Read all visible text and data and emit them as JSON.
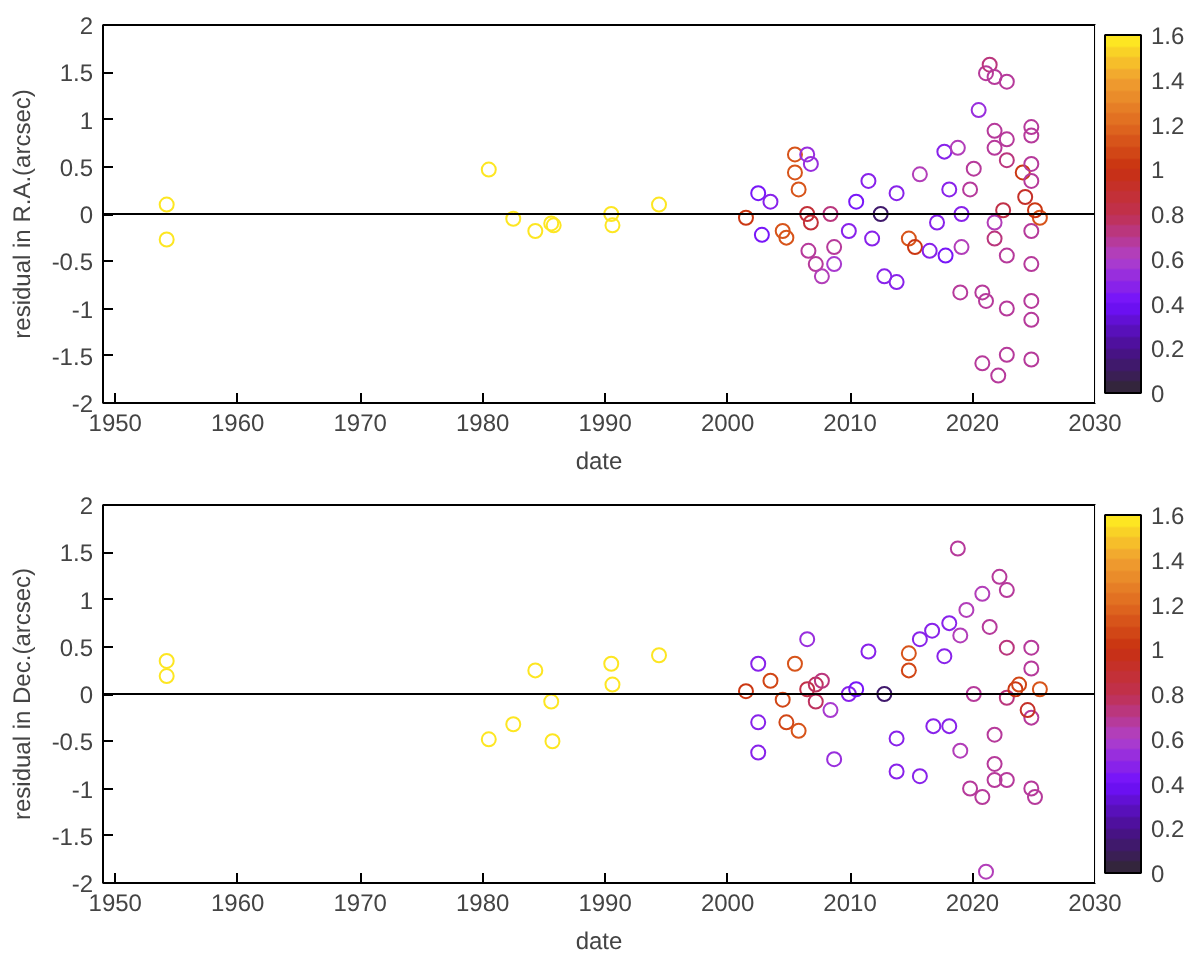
{
  "chart_data": [
    {
      "type": "scatter",
      "xlabel": "date",
      "ylabel": "residual in R.A.(arcsec)",
      "marker": "circle",
      "grid": false,
      "xlim": [
        1949,
        2030
      ],
      "xticks": [
        1950,
        1960,
        1970,
        1980,
        1990,
        2000,
        2010,
        2020,
        2030
      ],
      "ylim": [
        -2,
        2
      ],
      "yticks": [
        -2,
        -1.5,
        -1,
        -0.5,
        0,
        0.5,
        1,
        1.5,
        2
      ],
      "clim": [
        0,
        1.6
      ],
      "cticks": [
        0,
        0.2,
        0.4,
        0.6,
        0.8,
        1,
        1.2,
        1.4,
        1.6
      ],
      "ref_lines": [
        {
          "axis": "y",
          "value": 0,
          "color": "#000000"
        }
      ],
      "x": [
        1954.2,
        1954.2,
        1980.5,
        1982.5,
        1984.3,
        1985.6,
        1985.8,
        1990.5,
        1990.6,
        1994.4,
        2001.5,
        2002.5,
        2002.8,
        2003.5,
        2004.5,
        2004.8,
        2005.5,
        2005.5,
        2005.8,
        2006.5,
        2006.8,
        2006.5,
        2006.8,
        2006.6,
        2007.2,
        2007.7,
        2008.7,
        2008.7,
        2008.4,
        2009.9,
        2010.5,
        2011.5,
        2011.8,
        2012.8,
        2013.8,
        2012.5,
        2013.8,
        2014.8,
        2015.3,
        2015.7,
        2016.5,
        2017.1,
        2017.7,
        2017.8,
        2018.1,
        2018.8,
        2019.1,
        2019.1,
        2019.0,
        2019.8,
        2020.1,
        2020.5,
        2020.8,
        2020.8,
        2021.1,
        2021.1,
        2021.4,
        2021.8,
        2021.8,
        2021.8,
        2021.8,
        2021.8,
        2022.1,
        2022.8,
        2022.8,
        2022.8,
        2022.8,
        2022.8,
        2022.8,
        2022.5,
        2024.1,
        2024.3,
        2024.8,
        2024.8,
        2024.8,
        2024.8,
        2024.8,
        2024.8,
        2024.8,
        2024.8,
        2024.8,
        2025.5,
        2025.1
      ],
      "values": [
        0.1,
        -0.27,
        0.47,
        -0.05,
        -0.18,
        -0.1,
        -0.12,
        0.0,
        -0.12,
        0.1,
        -0.04,
        0.22,
        -0.22,
        0.13,
        -0.18,
        -0.25,
        0.63,
        0.44,
        0.26,
        0.63,
        0.53,
        0,
        -0.09,
        -0.39,
        -0.53,
        -0.66,
        -0.35,
        -0.53,
        0,
        -0.18,
        0.13,
        0.35,
        -0.26,
        -0.66,
        -0.72,
        0,
        0.22,
        -0.26,
        -0.35,
        0.42,
        -0.39,
        -0.09,
        0.66,
        -0.44,
        0.26,
        0.7,
        0,
        -0.35,
        -0.83,
        0.26,
        0.48,
        1.1,
        -0.83,
        -1.58,
        -0.92,
        1.49,
        1.58,
        1.45,
        0.88,
        0.7,
        -0.09,
        -0.26,
        -1.71,
        1.4,
        0.79,
        0.57,
        -0.44,
        -1.0,
        -1.49,
        0.04,
        0.44,
        0.18,
        0.92,
        0.83,
        0.53,
        0.35,
        -0.18,
        -0.53,
        -0.92,
        -1.12,
        -1.54,
        -0.04,
        0.04
      ],
      "cvalues": [
        1.6,
        1.6,
        1.6,
        1.6,
        1.6,
        1.6,
        1.6,
        1.6,
        1.6,
        1.6,
        1.0,
        0.4,
        0.4,
        0.45,
        1.1,
        1.1,
        1.1,
        1.1,
        1.1,
        0.5,
        0.5,
        0.85,
        0.85,
        0.65,
        0.65,
        0.6,
        0.65,
        0.55,
        0.7,
        0.45,
        0.4,
        0.45,
        0.45,
        0.45,
        0.45,
        0.1,
        0.45,
        1.1,
        1.0,
        0.6,
        0.45,
        0.45,
        0.45,
        0.4,
        0.45,
        0.6,
        0.45,
        0.6,
        0.65,
        0.65,
        0.65,
        0.5,
        0.65,
        0.65,
        0.65,
        0.65,
        0.7,
        0.65,
        0.65,
        0.65,
        0.6,
        0.7,
        0.65,
        0.65,
        0.65,
        0.7,
        0.65,
        0.65,
        0.65,
        0.8,
        1.0,
        0.9,
        0.65,
        0.65,
        0.65,
        0.65,
        0.65,
        0.65,
        0.65,
        0.65,
        0.65,
        1.1,
        1.0
      ]
    },
    {
      "type": "scatter",
      "xlabel": "date",
      "ylabel": "residual in Dec.(arcsec)",
      "marker": "circle",
      "grid": false,
      "xlim": [
        1949,
        2030
      ],
      "xticks": [
        1950,
        1960,
        1970,
        1980,
        1990,
        2000,
        2010,
        2020,
        2030
      ],
      "ylim": [
        -2,
        2
      ],
      "yticks": [
        -2,
        -1.5,
        -1,
        -0.5,
        0,
        0.5,
        1,
        1.5,
        2
      ],
      "clim": [
        0,
        1.6
      ],
      "cticks": [
        0,
        0.2,
        0.4,
        0.6,
        0.8,
        1,
        1.2,
        1.4,
        1.6
      ],
      "ref_lines": [
        {
          "axis": "y",
          "value": 0,
          "color": "#000000"
        }
      ],
      "x": [
        1954.2,
        1954.2,
        1980.5,
        1982.5,
        1984.3,
        1985.6,
        1985.7,
        1990.5,
        1990.6,
        1994.4,
        2001.5,
        2002.5,
        2002.5,
        2002.5,
        2003.5,
        2004.5,
        2004.8,
        2005.5,
        2005.8,
        2006.5,
        2006.5,
        2007.2,
        2007.2,
        2007.7,
        2008.7,
        2008.4,
        2009.9,
        2011.5,
        2010.5,
        2012.8,
        2013.8,
        2013.8,
        2014.8,
        2014.8,
        2015.7,
        2015.7,
        2016.7,
        2016.8,
        2017.7,
        2018.1,
        2018.1,
        2018.8,
        2019.0,
        2019.0,
        2019.5,
        2019.8,
        2020.1,
        2020.8,
        2020.8,
        2021.1,
        2021.4,
        2021.8,
        2021.8,
        2021.8,
        2022.2,
        2022.8,
        2022.8,
        2022.8,
        2022.8,
        2023.5,
        2023.8,
        2024.8,
        2024.8,
        2024.8,
        2024.8,
        2025.1,
        2025.5,
        2024.5
      ],
      "values": [
        0.35,
        0.19,
        -0.48,
        -0.32,
        0.25,
        -0.08,
        -0.5,
        0.32,
        0.1,
        0.41,
        0.03,
        0.32,
        -0.3,
        -0.62,
        0.14,
        -0.06,
        -0.3,
        0.32,
        -0.39,
        0.58,
        0.05,
        0.1,
        -0.08,
        0.14,
        -0.69,
        -0.17,
        0.0,
        0.45,
        0.05,
        0,
        -0.47,
        -0.82,
        0.43,
        0.25,
        0.58,
        -0.87,
        0.67,
        -0.34,
        0.4,
        0.75,
        -0.34,
        1.54,
        0.62,
        -0.6,
        0.89,
        -1.0,
        0,
        1.06,
        -1.09,
        -1.88,
        0.71,
        -0.43,
        -0.74,
        -0.91,
        1.24,
        1.1,
        0.49,
        -0.04,
        -0.91,
        0.05,
        0.1,
        0.49,
        0.27,
        -0.25,
        -1.0,
        -1.09,
        0.05,
        -0.17
      ],
      "cvalues": [
        1.6,
        1.6,
        1.6,
        1.6,
        1.6,
        1.6,
        1.6,
        1.6,
        1.6,
        1.6,
        1.0,
        0.45,
        0.45,
        0.45,
        1.05,
        1.05,
        1.05,
        1.1,
        1.1,
        0.5,
        0.8,
        0.75,
        0.75,
        0.7,
        0.5,
        0.55,
        0.45,
        0.45,
        0.4,
        0.1,
        0.45,
        0.45,
        1.1,
        1.05,
        0.45,
        0.45,
        0.45,
        0.45,
        0.45,
        0.45,
        0.45,
        0.65,
        0.6,
        0.6,
        0.6,
        0.65,
        0.65,
        0.6,
        0.65,
        0.6,
        0.65,
        0.65,
        0.65,
        0.65,
        0.65,
        0.65,
        0.7,
        0.7,
        0.65,
        1.0,
        1.05,
        0.65,
        0.65,
        0.65,
        0.65,
        0.65,
        1.1,
        0.9
      ]
    }
  ]
}
